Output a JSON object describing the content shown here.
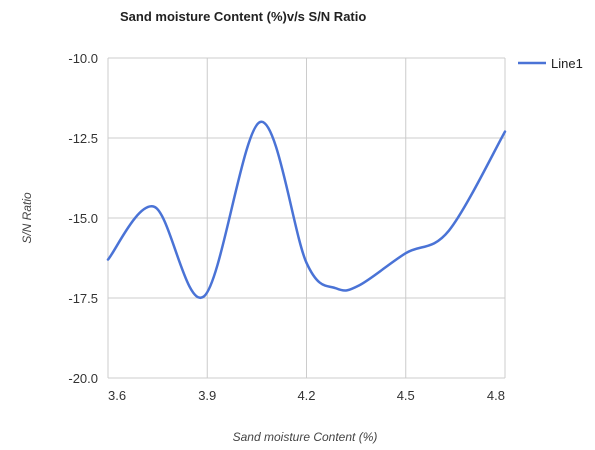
{
  "chart_data": {
    "type": "line",
    "title": "Sand moisture Content (%)v/s S/N Ratio",
    "xlabel": "Sand moisture Content (%)",
    "ylabel": "S/N Ratio",
    "xlim": [
      3.6,
      4.8
    ],
    "ylim": [
      -20.0,
      -10.0
    ],
    "xticks": [
      "3.6",
      "3.9",
      "4.2",
      "4.5",
      "4.8"
    ],
    "yticks": [
      "-10.0",
      "-12.5",
      "-15.0",
      "-17.5",
      "-20.0"
    ],
    "grid": true,
    "legend_position": "top-right",
    "series": [
      {
        "name": "Line1",
        "color": "#4a73d6",
        "x": [
          3.6,
          3.74,
          3.89,
          4.06,
          4.2,
          4.29,
          4.36,
          4.5,
          4.63,
          4.8
        ],
        "y": [
          -16.3,
          -14.65,
          -17.45,
          -12.0,
          -16.4,
          -17.2,
          -17.1,
          -16.1,
          -15.4,
          -12.3
        ]
      }
    ]
  }
}
